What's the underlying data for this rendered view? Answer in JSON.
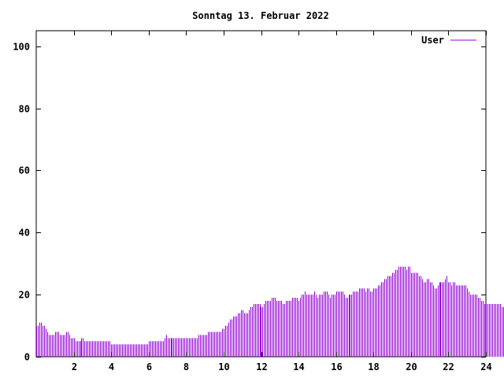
{
  "chart_data": {
    "type": "bar",
    "title": "Sonntag 13. Februar 2022",
    "xlabel": "",
    "ylabel": "",
    "xlim": [
      0,
      24
    ],
    "ylim": [
      0,
      105
    ],
    "xticks": [
      2,
      4,
      6,
      8,
      10,
      12,
      14,
      16,
      18,
      20,
      22,
      24
    ],
    "yticks": [
      0,
      20,
      40,
      60,
      80,
      100
    ],
    "grid": false,
    "legend_position": "top-right",
    "series": [
      {
        "name": "User",
        "color": "#9400d3",
        "interval_hours": 0.08333,
        "values": [
          10,
          10,
          11,
          11,
          10,
          10,
          9,
          8,
          7,
          7,
          7,
          7,
          8,
          8,
          8,
          7,
          7,
          7,
          7,
          8,
          8,
          7,
          6,
          6,
          6,
          5,
          5,
          5,
          5,
          6,
          6,
          5,
          5,
          5,
          5,
          5,
          5,
          5,
          5,
          5,
          5,
          5,
          5,
          5,
          5,
          5,
          5,
          5,
          4,
          4,
          4,
          4,
          4,
          4,
          4,
          4,
          4,
          4,
          4,
          4,
          4,
          4,
          4,
          4,
          4,
          4,
          4,
          4,
          4,
          4,
          4,
          4,
          5,
          5,
          5,
          5,
          5,
          5,
          5,
          5,
          5,
          5,
          6,
          7,
          6,
          6,
          6,
          6,
          6,
          6,
          6,
          6,
          6,
          6,
          6,
          6,
          6,
          6,
          6,
          6,
          6,
          6,
          6,
          6,
          7,
          7,
          7,
          7,
          7,
          7,
          8,
          8,
          8,
          8,
          8,
          8,
          8,
          8,
          8,
          9,
          9,
          10,
          10,
          11,
          12,
          12,
          13,
          13,
          13,
          14,
          14,
          15,
          15,
          14,
          14,
          14,
          15,
          16,
          16,
          17,
          17,
          17,
          17,
          17,
          16,
          16,
          17,
          18,
          18,
          18,
          18,
          19,
          19,
          19,
          18,
          18,
          18,
          18,
          17,
          17,
          18,
          18,
          18,
          18,
          19,
          19,
          19,
          19,
          18,
          19,
          20,
          20,
          21,
          20,
          20,
          20,
          20,
          20,
          21,
          20,
          19,
          20,
          20,
          20,
          21,
          21,
          21,
          20,
          19,
          20,
          20,
          20,
          21,
          21,
          21,
          21,
          21,
          20,
          19,
          19,
          20,
          20,
          20,
          21,
          21,
          21,
          21,
          22,
          22,
          22,
          22,
          21,
          22,
          22,
          21,
          21,
          22,
          22,
          22,
          23,
          23,
          24,
          24,
          25,
          25,
          26,
          26,
          26,
          27,
          27,
          28,
          28,
          29,
          29,
          29,
          29,
          29,
          28,
          29,
          29,
          27,
          27,
          27,
          27,
          27,
          26,
          26,
          25,
          24,
          24,
          25,
          25,
          24,
          24,
          23,
          22,
          22,
          23,
          24,
          24,
          24,
          24,
          25,
          26,
          24,
          24,
          23,
          24,
          24,
          23,
          23,
          23,
          23,
          23,
          23,
          23,
          22,
          21,
          20,
          20,
          20,
          20,
          20,
          19,
          19,
          18,
          18,
          17,
          17,
          17,
          17,
          17,
          17,
          17,
          17,
          17,
          17,
          17,
          16,
          16
        ]
      }
    ]
  }
}
